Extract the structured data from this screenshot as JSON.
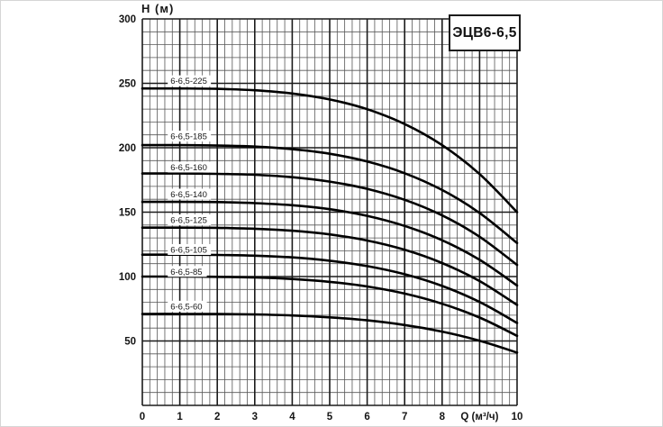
{
  "page": {
    "background": "#ffffff",
    "frame_color": "#d6d6d6"
  },
  "chart_data": {
    "type": "line",
    "title": "ЭЦВ6-6,5",
    "xlabel": "Q (м³/ч)",
    "ylabel": "H (м)",
    "xlim": [
      0,
      10
    ],
    "ylim": [
      0,
      300
    ],
    "x_major_step": 1,
    "x_minor_step": 0.2,
    "y_major_step": 50,
    "y_minor_step": 10,
    "grid": true,
    "legend_position": "inline-labels-left",
    "x_tick_labels": [
      "0",
      "1",
      "2",
      "3",
      "4",
      "5",
      "6",
      "7",
      "8",
      "Q (м³/ч)",
      "10"
    ],
    "y_tick_values": [
      50,
      100,
      150,
      200,
      250,
      300
    ],
    "q_values": [
      0,
      1,
      2,
      3,
      4,
      5,
      6,
      7,
      8,
      9,
      10
    ],
    "series": [
      {
        "name": "6-6,5-225",
        "h": [
          246,
          246,
          245.7,
          244.6,
          242.1,
          237.5,
          229.9,
          218.4,
          202.0,
          179.6,
          150
        ],
        "label_q": 0.75,
        "label_h": 252
      },
      {
        "name": "6-6,5-185",
        "h": [
          202,
          202,
          201.7,
          200.9,
          198.9,
          195.3,
          189.3,
          180.2,
          167.2,
          149.4,
          126
        ],
        "label_q": 0.75,
        "label_h": 209
      },
      {
        "name": "6-6,5-160",
        "h": [
          180,
          180,
          179.7,
          179.0,
          177.1,
          173.7,
          168.1,
          159.6,
          147.5,
          130.9,
          109
        ],
        "label_q": 0.75,
        "label_h": 185
      },
      {
        "name": "6-6,5-140",
        "h": [
          158,
          158,
          157.8,
          157.0,
          155.4,
          152.3,
          147.1,
          139.3,
          128.2,
          113.0,
          93
        ],
        "label_q": 0.75,
        "label_h": 164
      },
      {
        "name": "6-6,5-125",
        "h": [
          138,
          138,
          137.8,
          137.1,
          135.6,
          132.7,
          128.0,
          120.8,
          110.5,
          96.5,
          78
        ],
        "label_q": 0.75,
        "label_h": 144
      },
      {
        "name": "6-6,5-105",
        "h": [
          117,
          117,
          116.8,
          116.2,
          114.9,
          112.3,
          108.1,
          101.8,
          92.7,
          80.3,
          64
        ],
        "label_q": 0.75,
        "label_h": 121
      },
      {
        "name": "6-6,5-85",
        "h": [
          100,
          100,
          99.8,
          99.3,
          98.1,
          95.9,
          92.3,
          86.8,
          78.9,
          68.2,
          54
        ],
        "label_q": 0.75,
        "label_h": 104
      },
      {
        "name": "6-6,5-60",
        "h": [
          71,
          71,
          70.9,
          70.6,
          69.8,
          68.3,
          66.0,
          62.4,
          57.3,
          50.2,
          41
        ],
        "label_q": 0.75,
        "label_h": 77
      }
    ],
    "colors": {
      "curve": "#000000",
      "grid_minor": "#575757",
      "grid_major": "#1b1b1b",
      "text": "#141414",
      "label_bg": "#ffffff"
    }
  }
}
